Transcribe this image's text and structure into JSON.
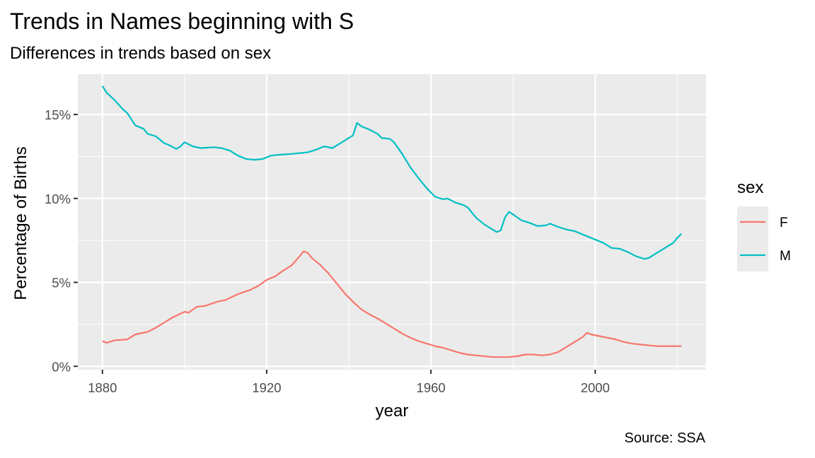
{
  "chart_data": {
    "type": "line",
    "title": "Trends in Names beginning with S",
    "subtitle": "Differences in trends based on sex",
    "caption": "Source: SSA",
    "xlabel": "year",
    "ylabel": "Percentage of Births",
    "xlim": [
      1874,
      2027
    ],
    "ylim": [
      -0.2,
      17.4
    ],
    "x_ticks": [
      1880,
      1920,
      1960,
      2000
    ],
    "x_tick_labels": [
      "1880",
      "1920",
      "1960",
      "2000"
    ],
    "y_ticks": [
      0,
      5,
      10,
      15
    ],
    "y_tick_labels": [
      "0%",
      "5%",
      "10%",
      "15%"
    ],
    "grid": true,
    "legend": {
      "title": "sex",
      "position": "right"
    },
    "series": [
      {
        "name": "F",
        "color": "#F8766D",
        "points": [
          [
            1880,
            1.5
          ],
          [
            1881,
            1.4
          ],
          [
            1883,
            1.55
          ],
          [
            1886,
            1.6
          ],
          [
            1888,
            1.9
          ],
          [
            1891,
            2.05
          ],
          [
            1893,
            2.3
          ],
          [
            1895,
            2.6
          ],
          [
            1897,
            2.9
          ],
          [
            1900,
            3.25
          ],
          [
            1901,
            3.2
          ],
          [
            1903,
            3.55
          ],
          [
            1905,
            3.6
          ],
          [
            1908,
            3.85
          ],
          [
            1910,
            3.95
          ],
          [
            1913,
            4.3
          ],
          [
            1916,
            4.55
          ],
          [
            1918,
            4.8
          ],
          [
            1920,
            5.15
          ],
          [
            1922,
            5.35
          ],
          [
            1924,
            5.7
          ],
          [
            1926,
            6.0
          ],
          [
            1928,
            6.55
          ],
          [
            1929,
            6.85
          ],
          [
            1930,
            6.75
          ],
          [
            1931,
            6.45
          ],
          [
            1933,
            6.05
          ],
          [
            1935,
            5.55
          ],
          [
            1937,
            4.95
          ],
          [
            1939,
            4.35
          ],
          [
            1941,
            3.85
          ],
          [
            1943,
            3.4
          ],
          [
            1945,
            3.1
          ],
          [
            1947,
            2.85
          ],
          [
            1949,
            2.55
          ],
          [
            1951,
            2.25
          ],
          [
            1953,
            1.95
          ],
          [
            1955,
            1.7
          ],
          [
            1957,
            1.5
          ],
          [
            1959,
            1.35
          ],
          [
            1961,
            1.2
          ],
          [
            1963,
            1.1
          ],
          [
            1965,
            0.95
          ],
          [
            1967,
            0.8
          ],
          [
            1969,
            0.7
          ],
          [
            1971,
            0.65
          ],
          [
            1973,
            0.6
          ],
          [
            1975,
            0.55
          ],
          [
            1977,
            0.55
          ],
          [
            1979,
            0.55
          ],
          [
            1981,
            0.6
          ],
          [
            1983,
            0.7
          ],
          [
            1985,
            0.7
          ],
          [
            1987,
            0.65
          ],
          [
            1989,
            0.7
          ],
          [
            1991,
            0.85
          ],
          [
            1993,
            1.15
          ],
          [
            1995,
            1.45
          ],
          [
            1997,
            1.75
          ],
          [
            1998,
            2.0
          ],
          [
            1999,
            1.9
          ],
          [
            2001,
            1.8
          ],
          [
            2003,
            1.7
          ],
          [
            2005,
            1.6
          ],
          [
            2007,
            1.45
          ],
          [
            2009,
            1.35
          ],
          [
            2011,
            1.3
          ],
          [
            2013,
            1.25
          ],
          [
            2015,
            1.2
          ],
          [
            2017,
            1.2
          ],
          [
            2019,
            1.2
          ],
          [
            2021,
            1.2
          ]
        ]
      },
      {
        "name": "M",
        "color": "#00BFC4",
        "points": [
          [
            1880,
            16.7
          ],
          [
            1881,
            16.3
          ],
          [
            1883,
            15.85
          ],
          [
            1885,
            15.3
          ],
          [
            1886,
            15.1
          ],
          [
            1888,
            14.35
          ],
          [
            1890,
            14.15
          ],
          [
            1891,
            13.85
          ],
          [
            1893,
            13.7
          ],
          [
            1895,
            13.3
          ],
          [
            1896,
            13.2
          ],
          [
            1898,
            12.95
          ],
          [
            1899,
            13.1
          ],
          [
            1900,
            13.35
          ],
          [
            1902,
            13.1
          ],
          [
            1904,
            13.0
          ],
          [
            1907,
            13.05
          ],
          [
            1909,
            13.0
          ],
          [
            1911,
            12.85
          ],
          [
            1913,
            12.55
          ],
          [
            1915,
            12.35
          ],
          [
            1917,
            12.3
          ],
          [
            1919,
            12.35
          ],
          [
            1921,
            12.55
          ],
          [
            1923,
            12.6
          ],
          [
            1926,
            12.65
          ],
          [
            1928,
            12.7
          ],
          [
            1930,
            12.75
          ],
          [
            1932,
            12.9
          ],
          [
            1934,
            13.1
          ],
          [
            1936,
            13.0
          ],
          [
            1938,
            13.3
          ],
          [
            1940,
            13.6
          ],
          [
            1941,
            13.75
          ],
          [
            1942,
            14.5
          ],
          [
            1943,
            14.3
          ],
          [
            1945,
            14.1
          ],
          [
            1947,
            13.85
          ],
          [
            1948,
            13.6
          ],
          [
            1950,
            13.55
          ],
          [
            1951,
            13.35
          ],
          [
            1953,
            12.65
          ],
          [
            1955,
            11.85
          ],
          [
            1957,
            11.2
          ],
          [
            1959,
            10.6
          ],
          [
            1961,
            10.1
          ],
          [
            1963,
            9.95
          ],
          [
            1964,
            10.0
          ],
          [
            1966,
            9.75
          ],
          [
            1968,
            9.6
          ],
          [
            1969,
            9.45
          ],
          [
            1971,
            8.85
          ],
          [
            1973,
            8.45
          ],
          [
            1975,
            8.15
          ],
          [
            1976,
            8.0
          ],
          [
            1977,
            8.1
          ],
          [
            1978,
            8.85
          ],
          [
            1979,
            9.2
          ],
          [
            1980,
            9.05
          ],
          [
            1982,
            8.7
          ],
          [
            1984,
            8.55
          ],
          [
            1986,
            8.35
          ],
          [
            1988,
            8.4
          ],
          [
            1989,
            8.5
          ],
          [
            1991,
            8.3
          ],
          [
            1993,
            8.15
          ],
          [
            1995,
            8.05
          ],
          [
            1997,
            7.85
          ],
          [
            1999,
            7.65
          ],
          [
            2001,
            7.45
          ],
          [
            2002,
            7.35
          ],
          [
            2004,
            7.05
          ],
          [
            2006,
            7.0
          ],
          [
            2008,
            6.8
          ],
          [
            2010,
            6.55
          ],
          [
            2012,
            6.4
          ],
          [
            2013,
            6.45
          ],
          [
            2015,
            6.75
          ],
          [
            2017,
            7.05
          ],
          [
            2019,
            7.35
          ],
          [
            2020,
            7.65
          ],
          [
            2021,
            7.9
          ]
        ]
      }
    ]
  }
}
